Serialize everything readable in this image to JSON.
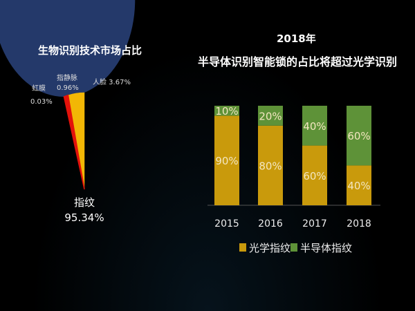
{
  "chart_data": [
    {
      "type": "pie",
      "title": "生物识别技术市场占比",
      "slices": [
        {
          "label": "指纹",
          "value": 95.34,
          "display": "95.34%",
          "color": "#24396a"
        },
        {
          "label": "人脸",
          "value": 3.67,
          "display": "3.67%",
          "color": "#f2b705"
        },
        {
          "label": "指静脉",
          "value": 0.96,
          "display": "0.96%",
          "color": "#e3120b"
        },
        {
          "label": "虹膜",
          "value": 0.03,
          "display": "0.03%",
          "color": "#e3120b"
        }
      ]
    },
    {
      "type": "bar",
      "stacked": true,
      "title": "2018年",
      "subtitle": "半导体识别智能锁的占比将超过光学识别",
      "categories": [
        "2015",
        "2016",
        "2017",
        "2018"
      ],
      "ylim": [
        0,
        100
      ],
      "series": [
        {
          "name": "光学指纹",
          "values": [
            90,
            80,
            60,
            40
          ],
          "labels": [
            "90%",
            "80%",
            "60%",
            "40%"
          ],
          "color": "#c99a0c"
        },
        {
          "name": "半导体指纹",
          "values": [
            10,
            20,
            40,
            60
          ],
          "labels": [
            "10%",
            "20%",
            "40%",
            "60%"
          ],
          "color": "#5e9238"
        }
      ],
      "legend": "bottom"
    }
  ]
}
